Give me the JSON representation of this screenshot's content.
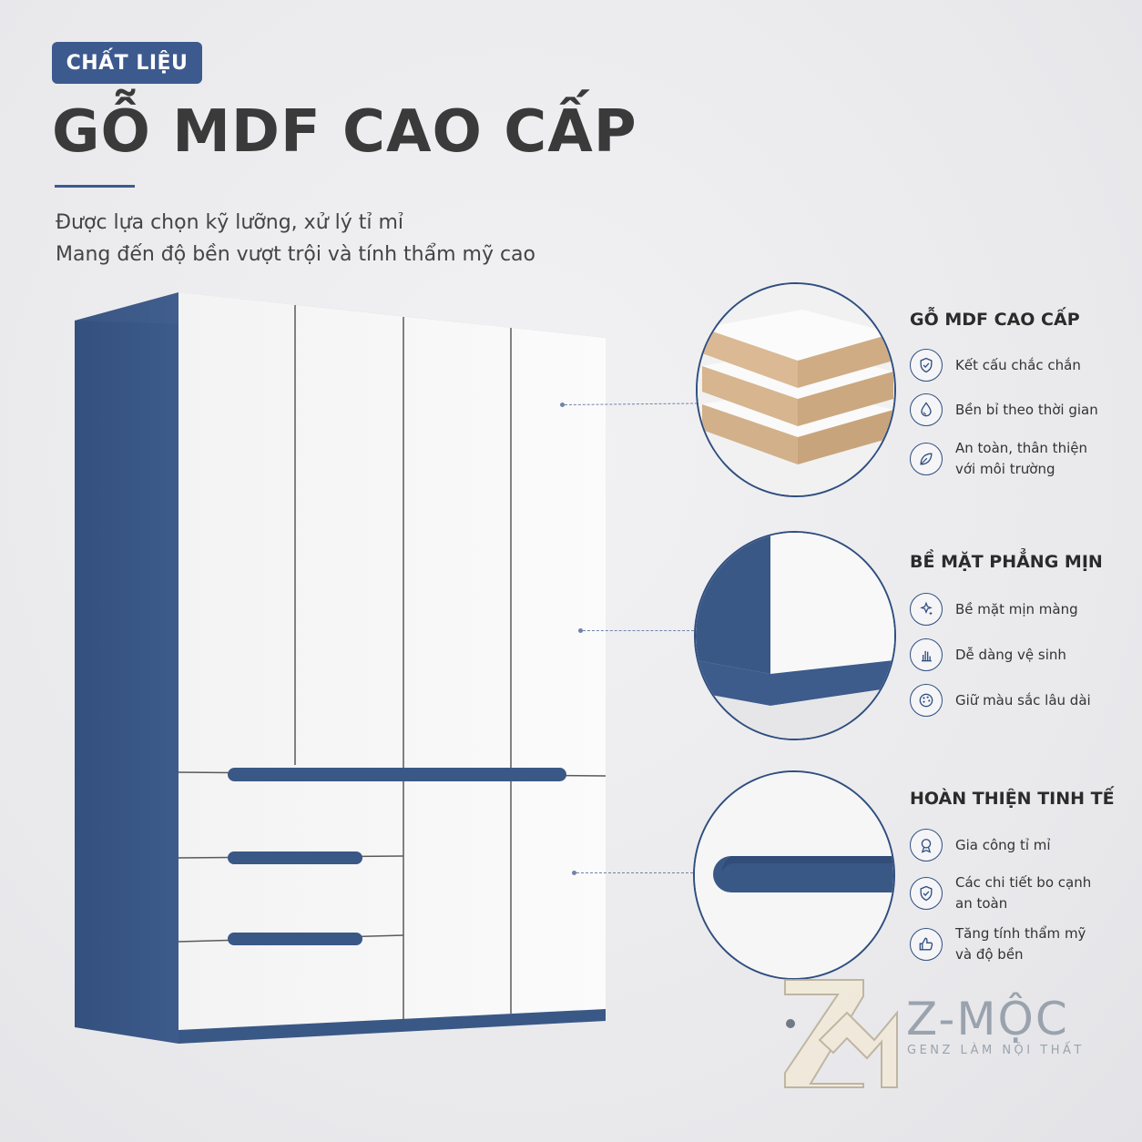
{
  "header": {
    "badge": "CHẤT LIỆU",
    "title": "GỖ MDF CAO CẤP",
    "subtitle_line1": "Được lựa chọn kỹ lưỡng, xử lý tỉ mỉ",
    "subtitle_line2": "Mang đến độ bền vượt trội và tính thẩm mỹ cao"
  },
  "sections": [
    {
      "title": "GỖ MDF CAO CẤP",
      "features": [
        {
          "icon": "shield-check-icon",
          "text": "Kết cấu chắc chắn"
        },
        {
          "icon": "water-drop-icon",
          "text": "Bền bỉ theo thời gian"
        },
        {
          "icon": "leaf-icon",
          "text": "An toàn, thân thiện với môi trường"
        }
      ]
    },
    {
      "title": "BỀ MẶT PHẲNG MỊN",
      "features": [
        {
          "icon": "sparkle-icon",
          "text": "Bề mặt mịn màng"
        },
        {
          "icon": "hand-wipe-icon",
          "text": "Dễ dàng vệ sinh"
        },
        {
          "icon": "color-palette-icon",
          "text": "Giữ màu sắc lâu dài"
        }
      ]
    },
    {
      "title": "HOÀN THIỆN TINH TẾ",
      "features": [
        {
          "icon": "award-medal-icon",
          "text": "Gia công tỉ mỉ"
        },
        {
          "icon": "shield-check-icon",
          "text": "Các chi tiết bo cạnh an toàn"
        },
        {
          "icon": "thumbs-up-icon",
          "text": "Tăng tính thẩm mỹ và độ bền"
        }
      ]
    }
  ],
  "brand": {
    "name": "Z-MỘC",
    "tagline": "GENZ LÀM NỘI THẤT"
  },
  "colors": {
    "accent": "#3d5a8f",
    "wardrobe_blue": "#3a5886",
    "panel_white": "#f7f7f7",
    "mdf_core": "#d4b48c"
  }
}
